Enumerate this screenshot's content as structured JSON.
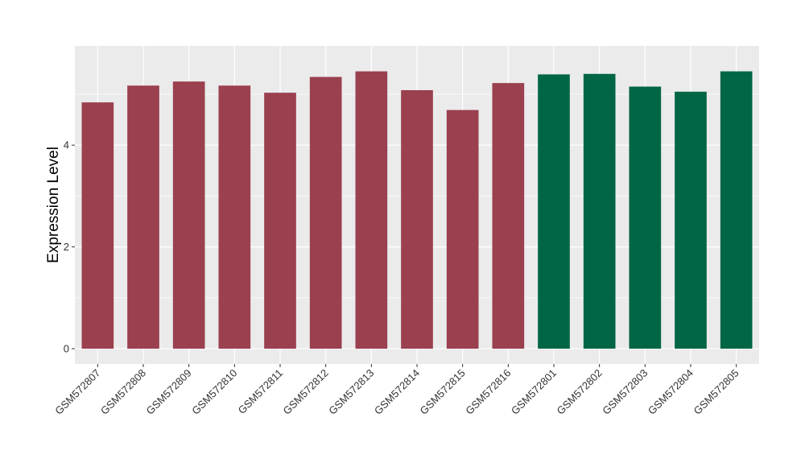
{
  "chart_data": {
    "type": "bar",
    "ylabel": "Expression Level",
    "xlabel": "",
    "title": "",
    "ylim": [
      -0.3,
      5.95
    ],
    "yticks": [
      0,
      2,
      4
    ],
    "grid": true,
    "legend": "none",
    "categories": [
      "GSM572807",
      "GSM572808",
      "GSM572809",
      "GSM572810",
      "GSM572811",
      "GSM572812",
      "GSM572813",
      "GSM572814",
      "GSM572815",
      "GSM572816",
      "GSM572801",
      "GSM572802",
      "GSM572803",
      "GSM572804",
      "GSM572805"
    ],
    "values": [
      4.84,
      5.17,
      5.25,
      5.17,
      5.03,
      5.34,
      5.45,
      5.08,
      4.69,
      5.22,
      5.39,
      5.4,
      5.15,
      5.05,
      5.45
    ],
    "group_colors": [
      "#9A404F",
      "#9A404F",
      "#9A404F",
      "#9A404F",
      "#9A404F",
      "#9A404F",
      "#9A404F",
      "#9A404F",
      "#9A404F",
      "#9A404F",
      "#006646",
      "#006646",
      "#006646",
      "#006646",
      "#006646"
    ],
    "panel_background": "#EBEBEB",
    "gridline_color": "#FFFFFF"
  }
}
